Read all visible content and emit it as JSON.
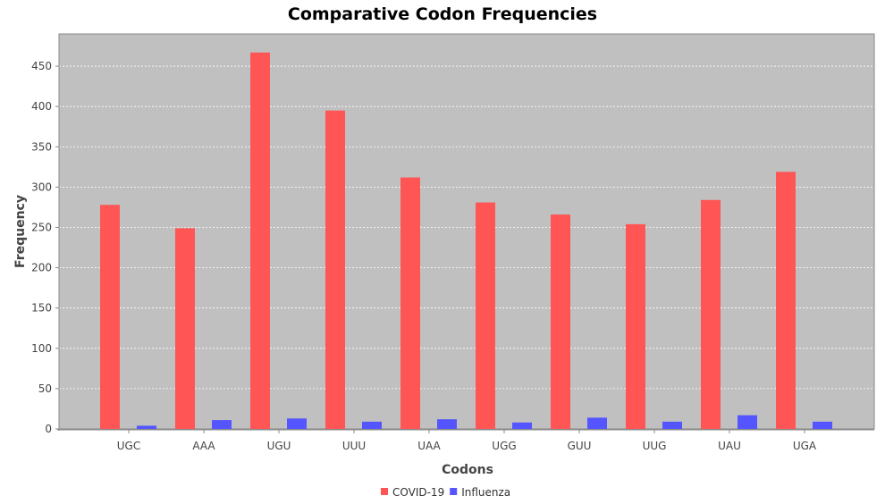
{
  "chart_data": {
    "type": "bar",
    "title": "Comparative Codon Frequencies",
    "xlabel": "Codons",
    "ylabel": "Frequency",
    "categories": [
      "UGC",
      "AAA",
      "UGU",
      "UUU",
      "UAA",
      "UGG",
      "GUU",
      "UUG",
      "UAU",
      "UGA"
    ],
    "series": [
      {
        "name": "COVID-19",
        "color": "#ff5555",
        "values": [
          278,
          249,
          467,
          395,
          312,
          281,
          266,
          254,
          284,
          319
        ]
      },
      {
        "name": "Influenza",
        "color": "#5555ff",
        "values": [
          4,
          11,
          13,
          9,
          12,
          8,
          14,
          9,
          17,
          9
        ]
      }
    ],
    "ylim": [
      0,
      490
    ],
    "yticks": [
      0,
      50,
      100,
      150,
      200,
      250,
      300,
      350,
      400,
      450
    ],
    "grid": true,
    "plot_background": "#c0c0c0",
    "legend_position": "bottom"
  }
}
